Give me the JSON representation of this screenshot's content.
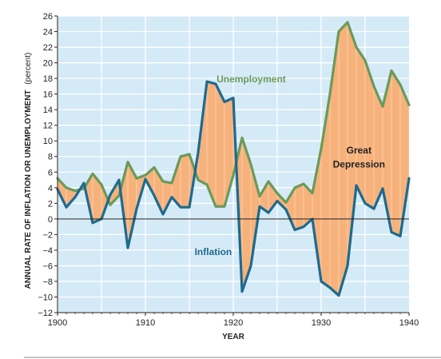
{
  "chart_data": {
    "type": "line",
    "xlabel": "YEAR",
    "ylabel": "ANNUAL RATE OF INFLATION OR UNEMPLOYMENT",
    "ylabel_unit": "(percent)",
    "xlim": [
      1900,
      1940
    ],
    "ylim": [
      -12,
      26
    ],
    "x_ticks": [
      1900,
      1910,
      1920,
      1930,
      1940
    ],
    "y_ticks": [
      26,
      24,
      22,
      20,
      18,
      16,
      14,
      12,
      10,
      8,
      6,
      4,
      2,
      0,
      -2,
      -4,
      -6,
      -8,
      -10,
      -12
    ],
    "grid": true,
    "x": [
      1900,
      1901,
      1902,
      1903,
      1904,
      1905,
      1906,
      1907,
      1908,
      1909,
      1910,
      1911,
      1912,
      1913,
      1914,
      1915,
      1916,
      1917,
      1918,
      1919,
      1920,
      1921,
      1922,
      1923,
      1924,
      1925,
      1926,
      1927,
      1928,
      1929,
      1930,
      1931,
      1932,
      1933,
      1934,
      1935,
      1936,
      1937,
      1938,
      1939,
      1940
    ],
    "series": [
      {
        "name": "Unemployment",
        "color": "#6a9a5a",
        "values": [
          5.2,
          4.0,
          3.6,
          3.9,
          5.8,
          4.4,
          1.8,
          3.0,
          7.3,
          5.2,
          5.6,
          6.6,
          4.8,
          4.6,
          8.0,
          8.3,
          5.0,
          4.4,
          1.6,
          1.6,
          5.6,
          10.4,
          7.0,
          2.9,
          4.8,
          3.3,
          2.1,
          4.0,
          4.5,
          3.3,
          9.0,
          16.0,
          24.0,
          25.2,
          22.0,
          20.3,
          17.0,
          14.4,
          19.0,
          17.2,
          14.6
        ]
      },
      {
        "name": "Inflation",
        "color": "#1e6a8e",
        "values": [
          3.8,
          1.5,
          2.8,
          4.6,
          -0.5,
          0.0,
          3.1,
          5.0,
          -3.7,
          1.3,
          5.1,
          3.0,
          0.6,
          2.8,
          1.5,
          1.5,
          8.5,
          17.6,
          17.3,
          15.0,
          15.5,
          -9.3,
          -6.0,
          1.6,
          0.8,
          2.3,
          1.2,
          -1.4,
          -1.0,
          0.0,
          -8.0,
          -8.8,
          -9.8,
          -6.0,
          4.3,
          2.0,
          1.3,
          3.9,
          -1.7,
          -2.2,
          5.2
        ]
      }
    ],
    "annotations": {
      "unemployment_label": "Unemployment",
      "inflation_label": "Inflation",
      "great_depression_line1": "Great",
      "great_depression_line2": "Depression"
    },
    "colors": {
      "plot_background": "#d4eaf7",
      "grid": "#ffffff",
      "fill_between": "#f7b27c"
    }
  }
}
